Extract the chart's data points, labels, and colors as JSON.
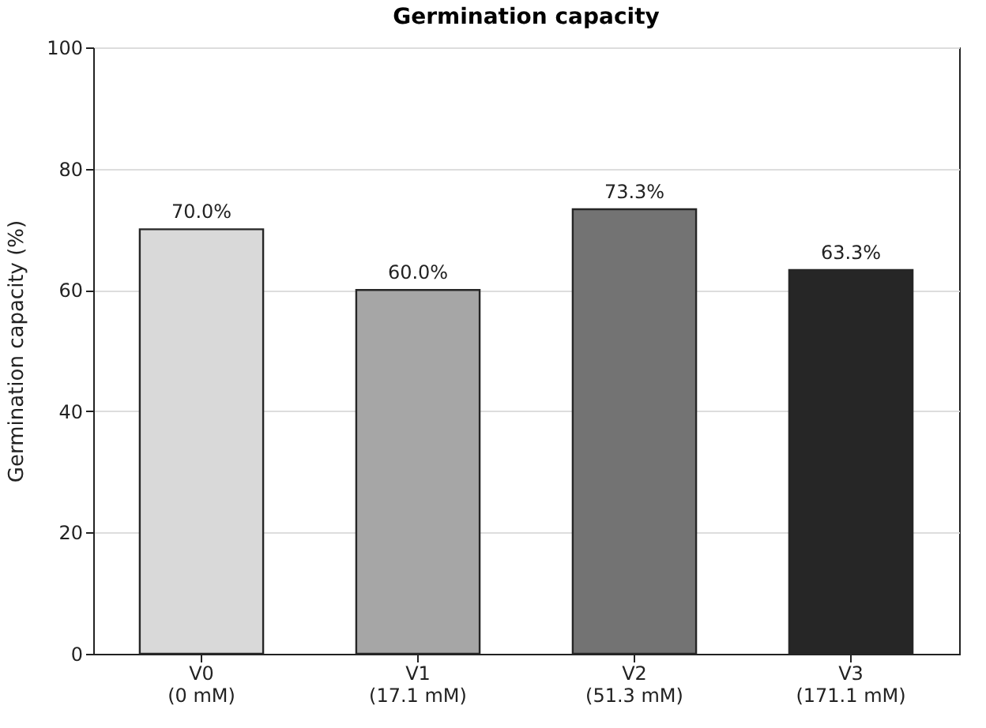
{
  "chart_data": {
    "type": "bar",
    "title": "Germination capacity",
    "ylabel": "Germination capacity (%)",
    "categories": [
      "V0\n(0 mM)",
      "V1\n(17.1 mM)",
      "V2\n(51.3 mM)",
      "V3\n(171.1 mM)"
    ],
    "values": [
      70.0,
      60.0,
      73.3,
      63.3
    ],
    "colors": [
      "#d9d9d9",
      "#a6a6a6",
      "#737373",
      "#262626"
    ],
    "value_labels": [
      "70.0%",
      "60.0%",
      "73.3%",
      "63.3%"
    ],
    "ylim": [
      0,
      100
    ],
    "yticks": [
      0,
      20,
      40,
      60,
      80,
      100
    ],
    "grid": "y"
  }
}
